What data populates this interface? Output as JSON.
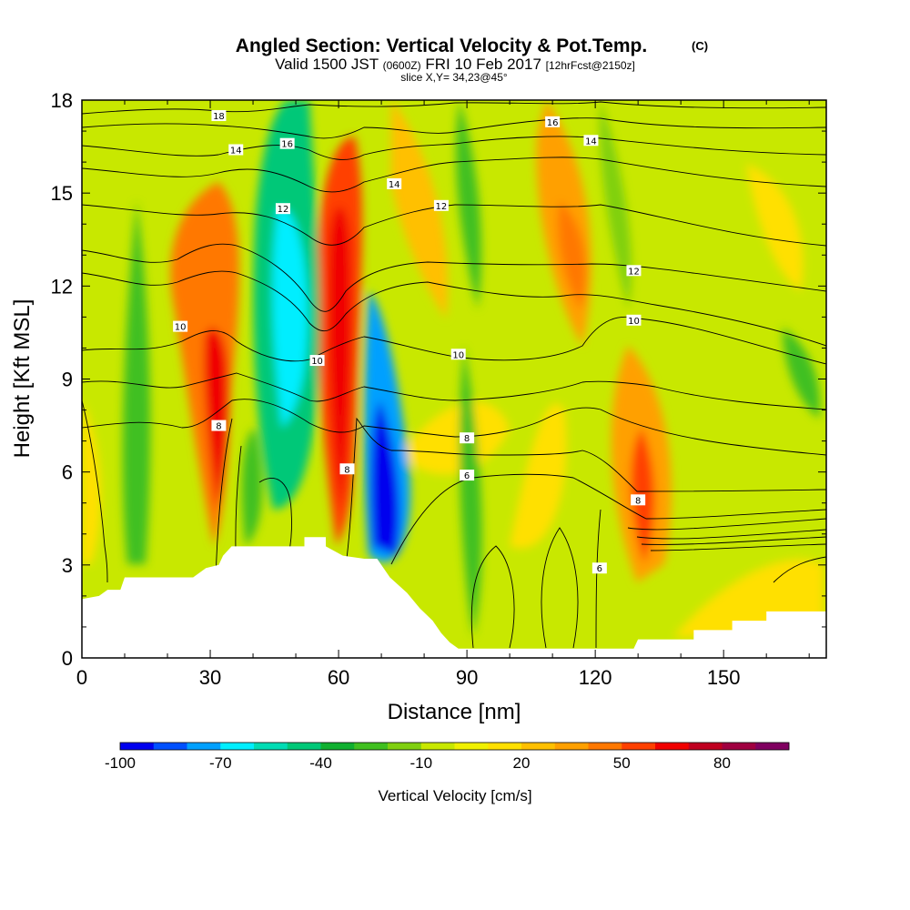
{
  "chart_data": {
    "type": "heatmap",
    "title": "Angled Section: Vertical Velocity & Pot.Temp.",
    "title_mark": "(C)",
    "subtitle_main": "Valid 1500 JST",
    "subtitle_small1": "(0600Z)",
    "subtitle_date": "FRI 10 Feb 2017",
    "subtitle_small2": "[12hrFcst@2150z]",
    "slice_label": "slice X,Y= 34,23@45°",
    "xlabel": "Distance [nm]",
    "ylabel": "Height [Kft MSL]",
    "xlim": [
      0,
      174
    ],
    "ylim": [
      0,
      18
    ],
    "x_ticks": [
      0,
      30,
      60,
      90,
      120,
      150
    ],
    "x_tick_labels": [
      "0",
      "30",
      "60",
      "90",
      "120",
      "150"
    ],
    "y_ticks": [
      0,
      3,
      6,
      9,
      12,
      15,
      18
    ],
    "y_tick_labels": [
      "0",
      "3",
      "6",
      "9",
      "12",
      "15",
      "18"
    ],
    "colorbar": {
      "label": "Vertical Velocity [cm/s]",
      "levels": [
        -100,
        -90,
        -80,
        -70,
        -60,
        -50,
        -40,
        -30,
        -20,
        -10,
        0,
        10,
        20,
        30,
        40,
        50,
        60,
        70,
        80,
        90,
        100
      ],
      "colors": [
        "#0000ee",
        "#0050ff",
        "#00a0ff",
        "#00eeff",
        "#00dcb4",
        "#00c878",
        "#10b030",
        "#40c020",
        "#80d010",
        "#c8e800",
        "#f0f000",
        "#ffe000",
        "#ffc000",
        "#ffa000",
        "#ff7800",
        "#ff4000",
        "#f00000",
        "#c00020",
        "#a00040",
        "#800060"
      ],
      "tick_values": [
        -100,
        -70,
        -40,
        -10,
        20,
        50,
        80
      ],
      "tick_labels": [
        "-100",
        "-70",
        "-40",
        "-10",
        "20",
        "50",
        "80"
      ]
    },
    "terrain": [
      [
        0,
        1.9
      ],
      [
        4,
        2.0
      ],
      [
        6,
        2.2
      ],
      [
        9,
        2.2
      ],
      [
        10,
        2.6
      ],
      [
        20,
        2.6
      ],
      [
        24,
        2.6
      ],
      [
        26,
        2.6
      ],
      [
        29,
        2.9
      ],
      [
        32,
        3.0
      ],
      [
        33,
        3.3
      ],
      [
        35,
        3.6
      ],
      [
        52,
        3.6
      ],
      [
        52,
        3.9
      ],
      [
        57,
        3.9
      ],
      [
        57,
        3.6
      ],
      [
        61,
        3.3
      ],
      [
        66,
        3.2
      ],
      [
        69,
        3.2
      ],
      [
        72,
        2.6
      ],
      [
        76,
        2.1
      ],
      [
        79,
        1.6
      ],
      [
        82,
        1.2
      ],
      [
        84,
        0.8
      ],
      [
        86,
        0.5
      ],
      [
        88,
        0.3
      ],
      [
        90,
        0.3
      ],
      [
        129,
        0.3
      ],
      [
        130,
        0.6
      ],
      [
        143,
        0.6
      ],
      [
        143,
        0.9
      ],
      [
        152,
        0.9
      ],
      [
        152,
        1.2
      ],
      [
        160,
        1.2
      ],
      [
        160,
        1.5
      ],
      [
        174,
        1.5
      ]
    ],
    "pot_temp_contour_labels": [
      {
        "label": "18",
        "x": 32,
        "y": 17.5
      },
      {
        "label": "16",
        "x": 110,
        "y": 17.3
      },
      {
        "label": "16",
        "x": 48,
        "y": 16.6
      },
      {
        "label": "14",
        "x": 36,
        "y": 16.4
      },
      {
        "label": "14",
        "x": 119,
        "y": 16.7
      },
      {
        "label": "14",
        "x": 73,
        "y": 15.3
      },
      {
        "label": "12",
        "x": 47,
        "y": 14.5
      },
      {
        "label": "12",
        "x": 84,
        "y": 14.6
      },
      {
        "label": "12",
        "x": 129,
        "y": 12.5
      },
      {
        "label": "10",
        "x": 23,
        "y": 10.7
      },
      {
        "label": "10",
        "x": 55,
        "y": 9.6
      },
      {
        "label": "10",
        "x": 88,
        "y": 9.8
      },
      {
        "label": "10",
        "x": 129,
        "y": 10.9
      },
      {
        "label": "8",
        "x": 32,
        "y": 7.5
      },
      {
        "label": "8",
        "x": 62,
        "y": 6.1
      },
      {
        "label": "8",
        "x": 90,
        "y": 7.1
      },
      {
        "label": "8",
        "x": 130,
        "y": 5.1
      },
      {
        "label": "6",
        "x": 90,
        "y": 5.9
      },
      {
        "label": "6",
        "x": 121,
        "y": 2.9
      }
    ]
  }
}
